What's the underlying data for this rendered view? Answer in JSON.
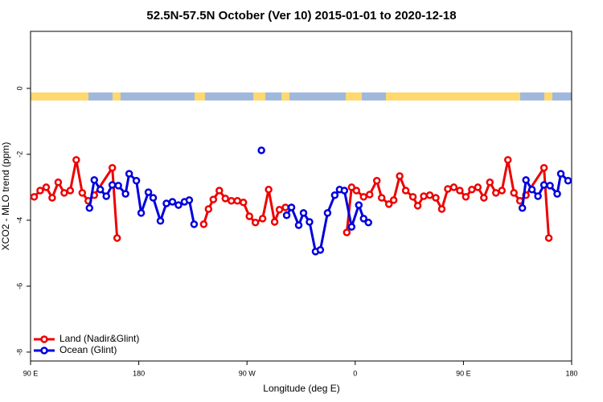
{
  "chart_data": {
    "type": "line",
    "title": "52.5N-57.5N October (Ver 10)   2015-01-01 to 2020-12-18",
    "xlabel": "Longitude (deg E)",
    "ylabel": "XCO2 - MLO trend (ppm)",
    "xlim": [
      90,
      540
    ],
    "ylim": [
      -8.27,
      1.73
    ],
    "xticks": [
      {
        "value": 90,
        "label": "90 E"
      },
      180,
      {
        "value": 270,
        "label": "90 W"
      },
      0,
      {
        "value": 450,
        "label": "90 E"
      },
      {
        "value": 540,
        "label": "180"
      }
    ],
    "yticks": [
      0,
      -2,
      -4,
      -6,
      -8
    ],
    "legend": "bottom-left",
    "series": [
      {
        "name": "Land (Nadir&Glint)",
        "color": "#ee0000",
        "x": [
          93,
          98,
          103,
          108,
          113,
          118,
          123,
          128,
          133,
          138,
          143,
          158,
          162,
          null,
          234,
          238,
          242,
          247,
          252,
          257,
          262,
          267,
          272,
          277,
          283,
          288,
          293,
          297,
          302,
          null,
          353,
          357,
          361,
          367,
          372,
          378,
          382,
          388,
          392,
          397,
          402,
          408,
          412,
          417,
          422,
          427,
          432,
          437,
          442,
          447,
          452,
          457,
          462,
          467,
          472,
          477,
          482,
          487,
          492,
          497,
          502,
          517,
          521
        ],
        "values": [
          -3.29,
          -3.1,
          -3.0,
          -3.32,
          -2.85,
          -3.17,
          -3.1,
          -2.17,
          -3.17,
          -3.41,
          -3.24,
          -2.41,
          -4.54,
          null,
          -4.12,
          -3.66,
          -3.37,
          -3.1,
          -3.34,
          -3.41,
          -3.41,
          -3.46,
          -3.88,
          -4.07,
          -3.95,
          -3.07,
          -4.05,
          -3.68,
          -3.61,
          null,
          -4.37,
          -3.0,
          -3.1,
          -3.29,
          -3.22,
          -2.8,
          -3.32,
          -3.51,
          -3.39,
          -2.66,
          -3.1,
          -3.29,
          -3.56,
          -3.27,
          -3.24,
          -3.32,
          -3.66,
          -3.05,
          -3.0,
          -3.1,
          -3.29,
          -3.07,
          -3.0,
          -3.32,
          -2.85,
          -3.17,
          -3.1,
          -2.17,
          -3.17,
          -3.41,
          -3.24,
          -2.41,
          -4.54
        ]
      },
      {
        "name": "Ocean (Glint)",
        "color": "#0000dd",
        "x": [
          139,
          143,
          148,
          153,
          158,
          163,
          169,
          172,
          178,
          182,
          188,
          192,
          198,
          203,
          208,
          213,
          218,
          222,
          226,
          null,
          282,
          null,
          303,
          307,
          313,
          317,
          322,
          327,
          331,
          337,
          343,
          347,
          351,
          357,
          363,
          367,
          371,
          null,
          499,
          502,
          507,
          512,
          517,
          522,
          528,
          531,
          537
        ],
        "values": [
          -3.63,
          -2.78,
          -3.07,
          -3.27,
          -2.93,
          -2.95,
          -3.2,
          -2.59,
          -2.8,
          -3.78,
          -3.15,
          -3.32,
          -4.02,
          -3.49,
          -3.44,
          -3.54,
          -3.44,
          -3.39,
          -4.12,
          null,
          -1.88,
          null,
          -3.85,
          -3.61,
          -4.15,
          -3.78,
          -4.05,
          -4.95,
          -4.9,
          -3.78,
          -3.24,
          -3.07,
          -3.1,
          -4.2,
          -3.54,
          -3.95,
          -4.07,
          null,
          -3.63,
          -2.78,
          -3.07,
          -3.27,
          -2.93,
          -2.95,
          -3.2,
          -2.59,
          -2.8
        ]
      }
    ]
  }
}
